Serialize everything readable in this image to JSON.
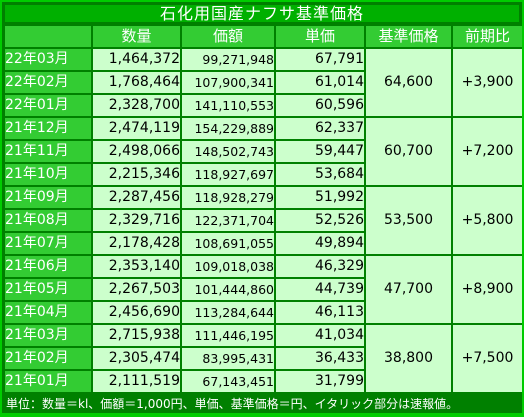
{
  "title": "石化用国産ナフサ基準価格",
  "headers": {
    "corner": "",
    "volume": "数量",
    "amount": "価額",
    "unit_price": "単価",
    "base_price": "基準価格",
    "change": "前期比"
  },
  "rows": [
    {
      "month": "22年03月",
      "volume": "1,464,372",
      "amount": "99,271,948",
      "unit_price": "67,791"
    },
    {
      "month": "22年02月",
      "volume": "1,768,464",
      "amount": "107,900,341",
      "unit_price": "61,014"
    },
    {
      "month": "22年01月",
      "volume": "2,328,700",
      "amount": "141,110,553",
      "unit_price": "60,596"
    },
    {
      "month": "21年12月",
      "volume": "2,474,119",
      "amount": "154,229,889",
      "unit_price": "62,337"
    },
    {
      "month": "21年11月",
      "volume": "2,498,066",
      "amount": "148,502,743",
      "unit_price": "59,447"
    },
    {
      "month": "21年10月",
      "volume": "2,215,346",
      "amount": "118,927,697",
      "unit_price": "53,684"
    },
    {
      "month": "21年09月",
      "volume": "2,287,456",
      "amount": "118,928,279",
      "unit_price": "51,992"
    },
    {
      "month": "21年08月",
      "volume": "2,329,716",
      "amount": "122,371,704",
      "unit_price": "52,526"
    },
    {
      "month": "21年07月",
      "volume": "2,178,428",
      "amount": "108,691,055",
      "unit_price": "49,894"
    },
    {
      "month": "21年06月",
      "volume": "2,353,140",
      "amount": "109,018,038",
      "unit_price": "46,329"
    },
    {
      "month": "21年05月",
      "volume": "2,267,503",
      "amount": "101,444,860",
      "unit_price": "44,739"
    },
    {
      "month": "21年04月",
      "volume": "2,456,690",
      "amount": "113,284,644",
      "unit_price": "46,113"
    },
    {
      "month": "21年03月",
      "volume": "2,715,938",
      "amount": "111,446,195",
      "unit_price": "41,034"
    },
    {
      "month": "21年02月",
      "volume": "2,305,474",
      "amount": "83,995,431",
      "unit_price": "36,433"
    },
    {
      "month": "21年01月",
      "volume": "2,111,519",
      "amount": "67,143,451",
      "unit_price": "31,799"
    }
  ],
  "quarters": [
    {
      "base_price": "64,600",
      "change": "+3,900"
    },
    {
      "base_price": "60,700",
      "change": "+7,200"
    },
    {
      "base_price": "53,500",
      "change": "+5,800"
    },
    {
      "base_price": "47,700",
      "change": "+8,900"
    },
    {
      "base_price": "38,800",
      "change": "+7,500"
    }
  ],
  "note": "単位：数量＝kl、価額＝1,000円、単価、基準価格＝円、イタリック部分は速報値。",
  "colors": {
    "background": "#00cc00",
    "frame": "#008000",
    "header_cell": "#33cc33",
    "data_cell": "#ccffcc",
    "title_bar": "#00b000"
  }
}
